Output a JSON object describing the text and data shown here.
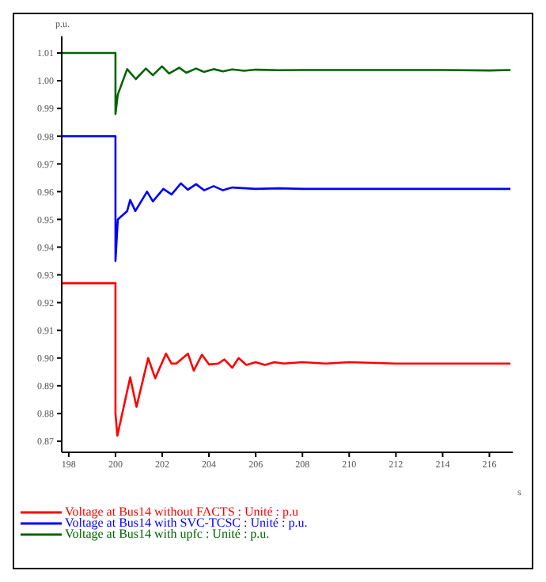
{
  "chart_data": {
    "type": "line",
    "ylabel": "p.u.",
    "xlabel": "s",
    "xlim": [
      197.7,
      217
    ],
    "xticks": [
      198,
      200,
      202,
      204,
      206,
      208,
      210,
      212,
      214,
      216
    ],
    "ylim": [
      0.866,
      1.016
    ],
    "yticks": [
      0.87,
      0.88,
      0.89,
      {
        "value": 0.9,
        "label": "0.90"
      },
      0.91,
      0.92,
      0.93,
      0.94,
      0.95,
      0.96,
      0.97,
      0.98,
      0.99,
      {
        "value": 1,
        "label": "1.00"
      },
      1.01
    ],
    "grid": false,
    "legend": "bottom",
    "marker": "none",
    "line_style": "solid",
    "series": [
      {
        "name": "Voltage at Bus14 without FACTS : Unité : p.u",
        "color": "#ff0000",
        "x": [
          197.7,
          200,
          200,
          200.08,
          200.63,
          200.9,
          201.4,
          201.7,
          202.16,
          202.4,
          202.6,
          203.1,
          203.35,
          203.7,
          204.0,
          204.4,
          204.66,
          205.0,
          205.27,
          205.6,
          206,
          206.4,
          206.8,
          207.2,
          208,
          209,
          210,
          212,
          214,
          216.9
        ],
        "values": [
          0.927,
          0.927,
          0.88,
          0.872,
          0.893,
          0.8824,
          0.9,
          0.8927,
          0.9016,
          0.898,
          0.898,
          0.9016,
          0.8955,
          0.9012,
          0.8977,
          0.898,
          0.8995,
          0.8965,
          0.9,
          0.8975,
          0.8985,
          0.8975,
          0.8985,
          0.898,
          0.8985,
          0.898,
          0.8985,
          0.898,
          0.898,
          0.898
        ]
      },
      {
        "name": "Voltage at Bus14 with SVC-TCSC : Unité : p.u.",
        "color": "#0000ff",
        "x": [
          197.7,
          200,
          200,
          200.1,
          200.5,
          200.63,
          200.85,
          201.35,
          201.6,
          202.05,
          202.4,
          202.8,
          203.1,
          203.45,
          203.8,
          204.2,
          204.6,
          205,
          206,
          207,
          208,
          210,
          212,
          214,
          216.9
        ],
        "values": [
          0.98,
          0.98,
          0.935,
          0.95,
          0.953,
          0.957,
          0.953,
          0.96,
          0.9565,
          0.961,
          0.959,
          0.963,
          0.9607,
          0.9627,
          0.9605,
          0.962,
          0.9605,
          0.9615,
          0.961,
          0.9612,
          0.961,
          0.961,
          0.961,
          0.961,
          0.961
        ]
      },
      {
        "name": "Voltage at Bus14 with upfc : Unité : p.u.",
        "color": "#006400",
        "x": [
          197.7,
          200,
          200,
          200.1,
          200.5,
          200.87,
          201.3,
          201.6,
          201.99,
          202.3,
          202.73,
          203.03,
          203.45,
          203.78,
          204.2,
          204.6,
          205,
          205.5,
          206,
          207,
          208,
          210,
          212,
          214,
          216,
          216.9
        ],
        "values": [
          1.01,
          1.01,
          0.988,
          0.995,
          1.0042,
          1.0006,
          1.0044,
          1.002,
          1.0052,
          1.0026,
          1.0047,
          1.0029,
          1.0044,
          1.0032,
          1.0042,
          1.0034,
          1.0041,
          1.0036,
          1.004,
          1.0038,
          1.0039,
          1.0039,
          1.0039,
          1.0039,
          1.0037,
          1.0039
        ]
      }
    ]
  }
}
